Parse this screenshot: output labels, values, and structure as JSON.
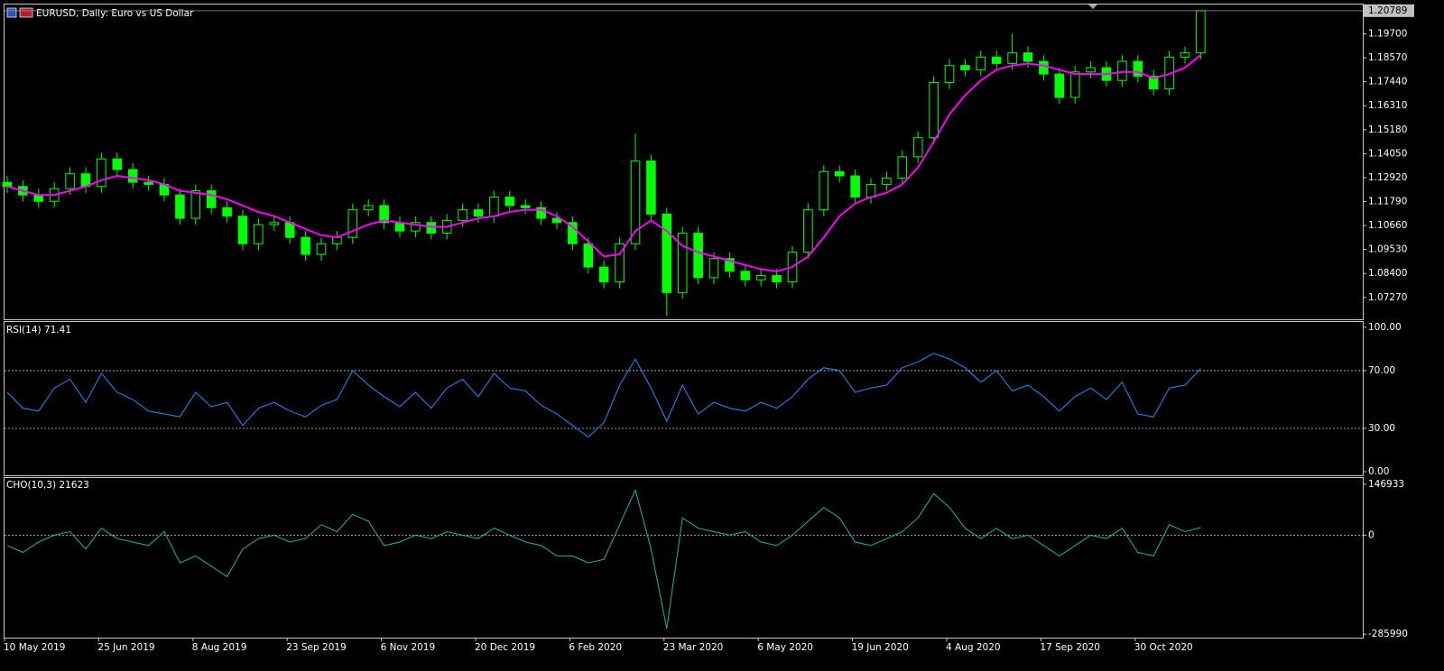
{
  "chart_data": [
    {
      "type": "candlestick",
      "title": "EURUSD, Daily:  Euro vs US Dollar",
      "color": "#00ff00",
      "categories": [
        "10 May 2019",
        null,
        null,
        null,
        null,
        null,
        "25 Jun 2019",
        null,
        null,
        null,
        null,
        null,
        "8 Aug 2019",
        null,
        null,
        null,
        null,
        null,
        "23 Sep 2019",
        null,
        null,
        null,
        null,
        null,
        "6 Nov 2019",
        null,
        null,
        null,
        null,
        null,
        "20 Dec 2019",
        null,
        null,
        null,
        null,
        null,
        "6 Feb 2020",
        null,
        null,
        null,
        null,
        null,
        "23 Mar 2020",
        null,
        null,
        null,
        null,
        null,
        "6 May 2020",
        null,
        null,
        null,
        null,
        null,
        "19 Jun 2020",
        null,
        null,
        null,
        null,
        null,
        "4 Aug 2020",
        null,
        null,
        null,
        null,
        null,
        "17 Sep 2020",
        null,
        null,
        null,
        null,
        null,
        "30 Oct 2020",
        null,
        null,
        null,
        null
      ],
      "open": [
        1.127,
        1.125,
        1.121,
        1.118,
        1.124,
        1.131,
        1.125,
        1.138,
        1.133,
        1.127,
        1.126,
        1.121,
        1.11,
        1.123,
        1.115,
        1.111,
        1.098,
        1.107,
        1.108,
        1.101,
        1.093,
        1.098,
        1.101,
        1.114,
        1.116,
        1.108,
        1.104,
        1.108,
        1.103,
        1.109,
        1.114,
        1.111,
        1.12,
        1.116,
        1.115,
        1.11,
        1.108,
        1.098,
        1.087,
        1.08,
        1.098,
        1.137,
        1.112,
        1.075,
        1.103,
        1.082,
        1.091,
        1.085,
        1.081,
        1.083,
        1.08,
        1.094,
        1.114,
        1.132,
        1.13,
        1.12,
        1.126,
        1.129,
        1.139,
        1.148,
        1.174,
        1.182,
        1.18,
        1.186,
        1.183,
        1.188,
        1.184,
        1.178,
        1.167,
        1.179,
        1.181,
        1.175,
        1.184,
        1.177,
        1.171,
        1.186,
        1.188
      ],
      "high": [
        1.13,
        1.128,
        1.124,
        1.127,
        1.134,
        1.134,
        1.141,
        1.141,
        1.136,
        1.13,
        1.129,
        1.124,
        1.126,
        1.126,
        1.118,
        1.114,
        1.11,
        1.111,
        1.111,
        1.104,
        1.101,
        1.104,
        1.117,
        1.119,
        1.119,
        1.111,
        1.111,
        1.111,
        1.112,
        1.117,
        1.117,
        1.123,
        1.123,
        1.119,
        1.118,
        1.113,
        1.111,
        1.101,
        1.09,
        1.101,
        1.15,
        1.14,
        1.115,
        1.106,
        1.106,
        1.094,
        1.094,
        1.088,
        1.086,
        1.086,
        1.097,
        1.117,
        1.135,
        1.135,
        1.133,
        1.129,
        1.132,
        1.142,
        1.151,
        1.177,
        1.185,
        1.185,
        1.189,
        1.189,
        1.197,
        1.191,
        1.187,
        1.181,
        1.182,
        1.184,
        1.184,
        1.187,
        1.187,
        1.18,
        1.189,
        1.191,
        1.20789
      ],
      "low": [
        1.122,
        1.118,
        1.115,
        1.115,
        1.121,
        1.122,
        1.122,
        1.13,
        1.124,
        1.123,
        1.118,
        1.107,
        1.107,
        1.112,
        1.108,
        1.095,
        1.095,
        1.104,
        1.098,
        1.09,
        1.09,
        1.095,
        1.098,
        1.111,
        1.105,
        1.101,
        1.101,
        1.1,
        1.1,
        1.106,
        1.108,
        1.108,
        1.113,
        1.112,
        1.107,
        1.105,
        1.095,
        1.084,
        1.077,
        1.077,
        1.095,
        1.109,
        1.064,
        1.072,
        1.079,
        1.079,
        1.082,
        1.078,
        1.078,
        1.077,
        1.077,
        1.091,
        1.111,
        1.127,
        1.117,
        1.117,
        1.123,
        1.126,
        1.136,
        1.145,
        1.171,
        1.177,
        1.177,
        1.18,
        1.18,
        1.181,
        1.175,
        1.164,
        1.164,
        1.176,
        1.172,
        1.172,
        1.174,
        1.168,
        1.168,
        1.183,
        1.185
      ],
      "close": [
        1.125,
        1.121,
        1.118,
        1.124,
        1.131,
        1.125,
        1.138,
        1.133,
        1.127,
        1.126,
        1.121,
        1.11,
        1.123,
        1.115,
        1.111,
        1.098,
        1.107,
        1.108,
        1.101,
        1.093,
        1.098,
        1.101,
        1.114,
        1.116,
        1.108,
        1.104,
        1.108,
        1.103,
        1.109,
        1.114,
        1.111,
        1.12,
        1.116,
        1.115,
        1.11,
        1.108,
        1.098,
        1.087,
        1.08,
        1.098,
        1.137,
        1.112,
        1.075,
        1.103,
        1.082,
        1.091,
        1.085,
        1.081,
        1.083,
        1.08,
        1.094,
        1.114,
        1.132,
        1.13,
        1.12,
        1.126,
        1.129,
        1.139,
        1.148,
        1.174,
        1.182,
        1.18,
        1.186,
        1.183,
        1.188,
        1.184,
        1.178,
        1.167,
        1.179,
        1.181,
        1.175,
        1.184,
        1.177,
        1.171,
        1.186,
        1.188,
        1.20789
      ],
      "ma": {
        "color": "#ff00ff",
        "values": [
          1.125,
          1.123,
          1.121,
          1.121,
          1.123,
          1.125,
          1.128,
          1.13,
          1.129,
          1.128,
          1.126,
          1.123,
          1.122,
          1.121,
          1.119,
          1.116,
          1.113,
          1.111,
          1.108,
          1.105,
          1.102,
          1.101,
          1.104,
          1.107,
          1.109,
          1.108,
          1.107,
          1.106,
          1.106,
          1.108,
          1.11,
          1.111,
          1.113,
          1.114,
          1.114,
          1.111,
          1.106,
          1.099,
          1.092,
          1.093,
          1.104,
          1.109,
          1.104,
          1.097,
          1.094,
          1.092,
          1.09,
          1.088,
          1.086,
          1.085,
          1.087,
          1.092,
          1.101,
          1.111,
          1.117,
          1.12,
          1.122,
          1.126,
          1.134,
          1.146,
          1.159,
          1.168,
          1.175,
          1.18,
          1.182,
          1.183,
          1.182,
          1.18,
          1.178,
          1.178,
          1.178,
          1.179,
          1.179,
          1.176,
          1.178,
          1.181,
          1.187
        ]
      },
      "ylim": [
        1.0624,
        1.2108
      ],
      "yticks": [
        {
          "value": 1.197,
          "label": "1.19700"
        },
        {
          "value": 1.1857,
          "label": "1.18570"
        },
        {
          "value": 1.1744,
          "label": "1.17440"
        },
        {
          "value": 1.1631,
          "label": "1.16310"
        },
        {
          "value": 1.1518,
          "label": "1.15180"
        },
        {
          "value": 1.1405,
          "label": "1.14050"
        },
        {
          "value": 1.1292,
          "label": "1.12920"
        },
        {
          "value": 1.1179,
          "label": "1.11790"
        },
        {
          "value": 1.1066,
          "label": "1.10660"
        },
        {
          "value": 1.0953,
          "label": "1.09530"
        },
        {
          "value": 1.084,
          "label": "1.08400"
        },
        {
          "value": 1.0727,
          "label": "1.07270"
        }
      ]
    },
    {
      "type": "line",
      "title": "RSI(14) 71.41",
      "color": "#1e90ff",
      "values": [
        55,
        44,
        42,
        58,
        64,
        48,
        68,
        55,
        50,
        42,
        40,
        38,
        55,
        45,
        48,
        32,
        44,
        48,
        42,
        38,
        46,
        50,
        70,
        60,
        52,
        45,
        55,
        44,
        58,
        64,
        52,
        68,
        58,
        56,
        46,
        40,
        32,
        24,
        34,
        60,
        78,
        58,
        35,
        60,
        40,
        48,
        44,
        42,
        48,
        44,
        52,
        64,
        72,
        70,
        55,
        58,
        60,
        72,
        76,
        82,
        78,
        72,
        62,
        70,
        56,
        60,
        52,
        42,
        52,
        58,
        50,
        62,
        40,
        38,
        58,
        60,
        71.41
      ],
      "ylim": [
        -2.5,
        103.7
      ],
      "yticks": [
        {
          "value": 100,
          "label": "100.00"
        },
        {
          "value": 70,
          "label": "70.00"
        },
        {
          "value": 30,
          "label": "30.00"
        },
        {
          "value": 0,
          "label": "0.00"
        }
      ],
      "levels": [
        70,
        30
      ]
    },
    {
      "type": "line",
      "title": "CHO(10,3) 21623",
      "color": "#20b2aa",
      "values": [
        -30000,
        -50000,
        -20000,
        0,
        10000,
        -40000,
        20000,
        -10000,
        -20000,
        -30000,
        10000,
        -80000,
        -60000,
        -90000,
        -120000,
        -40000,
        -10000,
        0,
        -20000,
        -10000,
        30000,
        10000,
        60000,
        40000,
        -30000,
        -20000,
        0,
        -10000,
        10000,
        0,
        -10000,
        20000,
        0,
        -20000,
        -30000,
        -60000,
        -60000,
        -80000,
        -70000,
        30000,
        130000,
        -40000,
        -270000,
        50000,
        20000,
        10000,
        0,
        10000,
        -20000,
        -30000,
        0,
        40000,
        80000,
        50000,
        -20000,
        -30000,
        -10000,
        10000,
        50000,
        120000,
        80000,
        20000,
        -10000,
        20000,
        -10000,
        0,
        -30000,
        -60000,
        -30000,
        0,
        -10000,
        20000,
        -50000,
        -60000,
        30000,
        10000,
        21623
      ],
      "ylim": [
        -296000,
        165000
      ],
      "yticks": [
        146933,
        0,
        -285990
      ],
      "levels": [
        0
      ]
    }
  ]
}
